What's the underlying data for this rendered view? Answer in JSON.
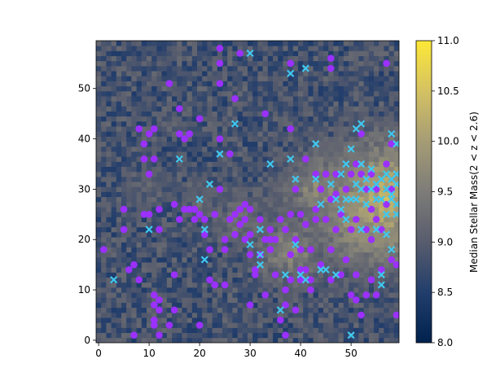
{
  "chart_data": {
    "type": "heatmap",
    "title": "",
    "xlabel": "",
    "ylabel": "",
    "xlim": [
      -0.5,
      59.5
    ],
    "ylim": [
      -0.5,
      59.5
    ],
    "x_ticks": [
      "0",
      "10",
      "20",
      "30",
      "40",
      "50"
    ],
    "y_ticks": [
      "0",
      "10",
      "20",
      "30",
      "40",
      "50"
    ],
    "grid": false,
    "colorbar": {
      "label": "Median Stellar Mass(2 < z < 2.6)",
      "range": [
        8.0,
        11.0
      ],
      "ticks": [
        "8.0",
        "8.5",
        "9.0",
        "9.5",
        "10.0",
        "10.5",
        "11.0"
      ],
      "colormap": "cividis"
    },
    "heatmap": {
      "grid_size": [
        60,
        60
      ],
      "description_free": true,
      "hotspots": [
        {
          "x": 57,
          "y": 28,
          "value": 10.6
        },
        {
          "x": 53,
          "y": 25,
          "value": 10.3
        },
        {
          "x": 44,
          "y": 30,
          "value": 10.0
        },
        {
          "x": 38,
          "y": 18,
          "value": 9.9
        },
        {
          "x": 49,
          "y": 22,
          "value": 9.8
        },
        {
          "x": 28,
          "y": 24,
          "value": 9.6
        },
        {
          "x": 10,
          "y": 30,
          "value": 9.4
        },
        {
          "x": 20,
          "y": 27,
          "value": 9.4
        }
      ]
    },
    "series": [
      {
        "marker": "circle",
        "color": "#9b30ff",
        "points": [
          [
            1,
            18
          ],
          [
            5,
            22
          ],
          [
            5,
            26
          ],
          [
            6,
            14
          ],
          [
            7,
            15
          ],
          [
            7,
            1
          ],
          [
            8,
            12
          ],
          [
            8,
            42
          ],
          [
            9,
            39
          ],
          [
            9,
            36
          ],
          [
            10,
            41
          ],
          [
            10,
            33
          ],
          [
            11,
            42
          ],
          [
            11,
            36
          ],
          [
            12,
            26
          ],
          [
            12,
            22
          ],
          [
            10,
            25
          ],
          [
            9,
            25
          ],
          [
            11,
            9
          ],
          [
            11,
            7
          ],
          [
            12,
            8
          ],
          [
            12,
            6
          ],
          [
            11,
            4
          ],
          [
            11,
            3
          ],
          [
            12,
            1
          ],
          [
            14,
            51
          ],
          [
            14,
            3
          ],
          [
            15,
            6
          ],
          [
            15,
            13
          ],
          [
            15,
            27
          ],
          [
            16,
            41
          ],
          [
            16,
            24
          ],
          [
            17,
            40
          ],
          [
            17,
            26
          ],
          [
            18,
            41
          ],
          [
            18,
            26
          ],
          [
            19,
            26
          ],
          [
            19,
            24
          ],
          [
            20,
            3
          ],
          [
            20,
            25
          ],
          [
            20,
            44
          ],
          [
            21,
            24
          ],
          [
            21,
            21
          ],
          [
            22,
            12
          ],
          [
            22,
            18
          ],
          [
            23,
            11
          ],
          [
            23,
            25
          ],
          [
            24,
            51
          ],
          [
            24,
            30
          ],
          [
            24,
            40
          ],
          [
            24,
            55
          ],
          [
            24,
            58
          ],
          [
            25,
            20
          ],
          [
            25,
            11
          ],
          [
            25,
            18
          ],
          [
            26,
            37
          ],
          [
            26,
            24
          ],
          [
            27,
            48
          ],
          [
            27,
            21
          ],
          [
            27,
            25
          ],
          [
            28,
            57
          ],
          [
            28,
            26
          ],
          [
            28,
            23
          ],
          [
            29,
            20
          ],
          [
            29,
            24
          ],
          [
            29,
            27
          ],
          [
            30,
            26
          ],
          [
            30,
            21
          ],
          [
            30,
            17
          ],
          [
            30,
            7
          ],
          [
            31,
            14
          ],
          [
            31,
            13
          ],
          [
            32,
            24
          ],
          [
            32,
            17
          ],
          [
            33,
            9
          ],
          [
            33,
            20
          ],
          [
            33,
            45
          ],
          [
            34,
            22
          ],
          [
            34,
            18
          ],
          [
            35,
            20
          ],
          [
            35,
            13
          ],
          [
            36,
            24
          ],
          [
            36,
            4
          ],
          [
            37,
            22
          ],
          [
            37,
            10
          ],
          [
            37,
            7
          ],
          [
            37,
            1
          ],
          [
            38,
            12
          ],
          [
            38,
            17
          ],
          [
            38,
            25
          ],
          [
            38,
            42
          ],
          [
            39,
            30
          ],
          [
            39,
            20
          ],
          [
            39,
            6
          ],
          [
            40,
            14
          ],
          [
            40,
            12
          ],
          [
            40,
            18
          ],
          [
            40,
            25
          ],
          [
            41,
            36
          ],
          [
            41,
            23
          ],
          [
            41,
            14
          ],
          [
            42,
            18
          ],
          [
            42,
            12
          ],
          [
            42,
            10
          ],
          [
            43,
            24
          ],
          [
            43,
            33
          ],
          [
            43,
            26
          ],
          [
            44,
            30
          ],
          [
            44,
            15
          ],
          [
            45,
            24
          ],
          [
            45,
            33
          ],
          [
            46,
            28
          ],
          [
            46,
            18
          ],
          [
            46,
            12
          ],
          [
            47,
            29
          ],
          [
            47,
            33
          ],
          [
            47,
            22
          ],
          [
            48,
            25
          ],
          [
            48,
            13
          ],
          [
            49,
            30
          ],
          [
            49,
            16
          ],
          [
            50,
            33
          ],
          [
            50,
            22
          ],
          [
            50,
            9
          ],
          [
            51,
            35
          ],
          [
            51,
            24
          ],
          [
            51,
            13
          ],
          [
            51,
            8
          ],
          [
            52,
            33
          ],
          [
            52,
            41
          ],
          [
            52,
            5
          ],
          [
            53,
            30
          ],
          [
            53,
            22
          ],
          [
            53,
            9
          ],
          [
            54,
            20
          ],
          [
            54,
            26
          ],
          [
            54,
            33
          ],
          [
            54,
            12
          ],
          [
            55,
            30
          ],
          [
            55,
            24
          ],
          [
            55,
            9
          ],
          [
            56,
            22
          ],
          [
            56,
            14
          ],
          [
            57,
            27
          ],
          [
            57,
            35
          ],
          [
            57,
            55
          ],
          [
            58,
            30
          ],
          [
            58,
            16
          ],
          [
            58,
            39
          ],
          [
            59,
            15
          ],
          [
            59,
            5
          ],
          [
            46,
            56
          ],
          [
            46,
            54
          ],
          [
            38,
            55
          ],
          [
            34,
            20
          ],
          [
            16,
            46
          ]
        ]
      },
      {
        "marker": "x",
        "color": "#3fc8f0",
        "points": [
          [
            3,
            12
          ],
          [
            10,
            22
          ],
          [
            16,
            36
          ],
          [
            20,
            28
          ],
          [
            21,
            22
          ],
          [
            21,
            16
          ],
          [
            22,
            31
          ],
          [
            24,
            37
          ],
          [
            27,
            43
          ],
          [
            30,
            57
          ],
          [
            30,
            19
          ],
          [
            32,
            22
          ],
          [
            32,
            17
          ],
          [
            32,
            15
          ],
          [
            34,
            35
          ],
          [
            36,
            6
          ],
          [
            37,
            13
          ],
          [
            38,
            36
          ],
          [
            39,
            19
          ],
          [
            39,
            32
          ],
          [
            40,
            13
          ],
          [
            41,
            12
          ],
          [
            41,
            54
          ],
          [
            38,
            53
          ],
          [
            43,
            39
          ],
          [
            43,
            32
          ],
          [
            44,
            14
          ],
          [
            44,
            27
          ],
          [
            45,
            14
          ],
          [
            46,
            31
          ],
          [
            47,
            28
          ],
          [
            47,
            13
          ],
          [
            48,
            33
          ],
          [
            48,
            26
          ],
          [
            49,
            28
          ],
          [
            49,
            35
          ],
          [
            49,
            24
          ],
          [
            50,
            28
          ],
          [
            50,
            38
          ],
          [
            50,
            1
          ],
          [
            51,
            42
          ],
          [
            51,
            31
          ],
          [
            51,
            28
          ],
          [
            52,
            43
          ],
          [
            52,
            35
          ],
          [
            52,
            30
          ],
          [
            52,
            22
          ],
          [
            53,
            27
          ],
          [
            53,
            32
          ],
          [
            54,
            34
          ],
          [
            54,
            30
          ],
          [
            55,
            28
          ],
          [
            55,
            31
          ],
          [
            55,
            22
          ],
          [
            56,
            32
          ],
          [
            56,
            28
          ],
          [
            56,
            13
          ],
          [
            56,
            11
          ],
          [
            57,
            33
          ],
          [
            57,
            30
          ],
          [
            57,
            25
          ],
          [
            57,
            21
          ],
          [
            58,
            32
          ],
          [
            58,
            29
          ],
          [
            58,
            41
          ],
          [
            58,
            28
          ],
          [
            59,
            31
          ],
          [
            59,
            27
          ],
          [
            59,
            39
          ],
          [
            59,
            33
          ],
          [
            58,
            18
          ],
          [
            59,
            25
          ]
        ]
      }
    ]
  }
}
